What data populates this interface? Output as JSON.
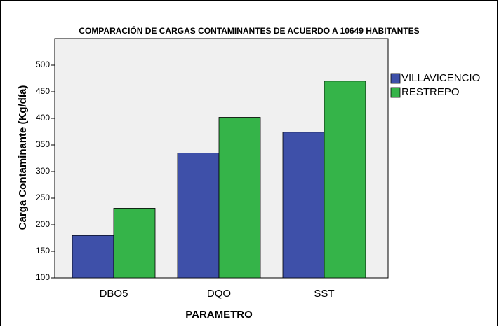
{
  "chart_data": {
    "type": "bar",
    "title": "COMPARACIÓN DE CARGAS CONTAMINANTES DE ACUERDO A 10649 HABITANTES",
    "x_label": "PARAMETRO",
    "y_label": "Carga Contaminante (Kg/día)",
    "categories": [
      "DBO5",
      "DQO",
      "SST"
    ],
    "series": [
      {
        "name": "VILLAVICENCIO",
        "color": "#3e50a9",
        "values": [
          180,
          335,
          374
        ]
      },
      {
        "name": "RESTREPO",
        "color": "#35b449",
        "values": [
          231,
          402,
          470
        ]
      }
    ],
    "ylim": [
      100,
      550
    ],
    "yticks": [
      100,
      150,
      200,
      250,
      300,
      350,
      400,
      450,
      500
    ]
  }
}
